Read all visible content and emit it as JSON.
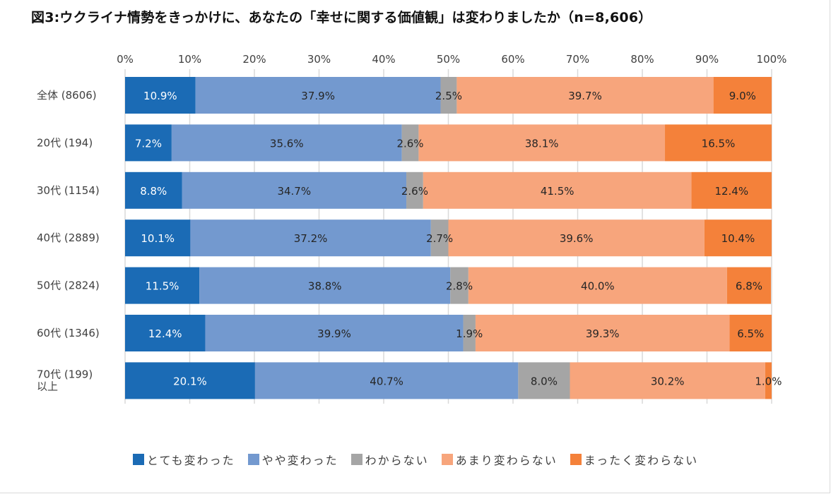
{
  "chart_data": {
    "type": "bar",
    "orientation": "horizontal",
    "stacked": true,
    "percent": true,
    "title": "図3:ウクライナ情勢をきっかけに、あなたの「幸せに関する価値観」は変わりましたか（n=8,606）",
    "xlabel": "",
    "ylabel": "",
    "xlim": [
      0,
      100
    ],
    "x_ticks": [
      "0%",
      "10%",
      "20%",
      "30%",
      "40%",
      "50%",
      "60%",
      "70%",
      "80%",
      "90%",
      "100%"
    ],
    "grid": "vertical",
    "x_axis_position": "top",
    "legend_position": "bottom",
    "categories": [
      [
        "全体 (8606)"
      ],
      [
        "20代 (194)"
      ],
      [
        "30代 (1154)"
      ],
      [
        "40代 (2889)"
      ],
      [
        "50代 (2824)"
      ],
      [
        "60代 (1346)"
      ],
      [
        "70代 (199)",
        "以上"
      ]
    ],
    "series": [
      {
        "name": "とても変わった",
        "color": "#1b6bb5",
        "label_color": "#ffffff",
        "values": [
          10.9,
          7.2,
          8.8,
          10.1,
          11.5,
          12.4,
          20.1
        ],
        "labels": [
          "10.9%",
          "7.2%",
          "8.8%",
          "10.1%",
          "11.5%",
          "12.4%",
          "20.1%"
        ]
      },
      {
        "name": "やや変わった",
        "color": "#7399cf",
        "label_color": "#262626",
        "values": [
          37.9,
          35.6,
          34.7,
          37.2,
          38.8,
          39.9,
          40.7
        ],
        "labels": [
          "37.9%",
          "35.6%",
          "34.7%",
          "37.2%",
          "38.8%",
          "39.9%",
          "40.7%"
        ]
      },
      {
        "name": "わからない",
        "color": "#a5a5a5",
        "label_color": "#262626",
        "values": [
          2.5,
          2.6,
          2.6,
          2.7,
          2.8,
          1.9,
          8.0
        ],
        "labels": [
          "2.5%",
          "2.6%",
          "2.6%",
          "2.7%",
          "2.8%",
          "1.9%",
          "8.0%"
        ]
      },
      {
        "name": "あまり変わらない",
        "color": "#f7a57c",
        "label_color": "#262626",
        "values": [
          39.7,
          38.1,
          41.5,
          39.6,
          40.0,
          39.3,
          30.2
        ],
        "labels": [
          "39.7%",
          "38.1%",
          "41.5%",
          "39.6%",
          "40.0%",
          "39.3%",
          "30.2%"
        ]
      },
      {
        "name": "まったく変わらない",
        "color": "#f4813a",
        "label_color": "#262626",
        "values": [
          9.0,
          16.5,
          12.4,
          10.4,
          6.8,
          6.5,
          1.0
        ],
        "labels": [
          "9.0%",
          "16.5%",
          "12.4%",
          "10.4%",
          "6.8%",
          "6.5%",
          "1.0%"
        ]
      }
    ]
  }
}
